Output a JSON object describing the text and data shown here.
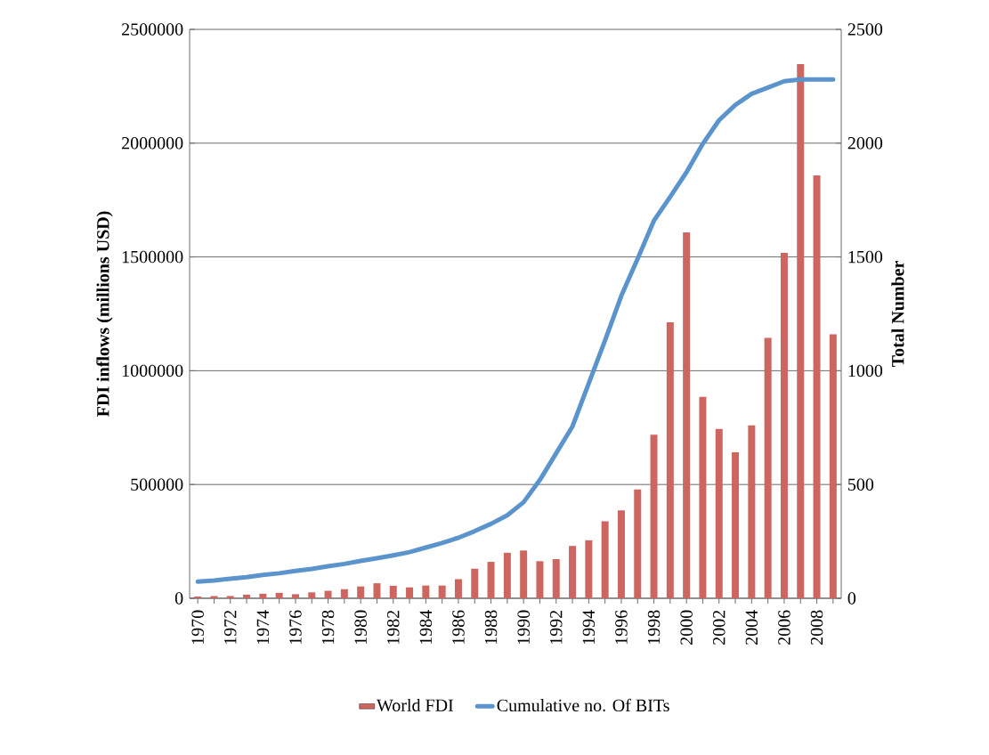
{
  "chart_data": {
    "type": "bar",
    "categories": [
      "1970",
      null,
      "1972",
      null,
      "1974",
      null,
      "1976",
      null,
      "1978",
      null,
      "1980",
      null,
      "1982",
      null,
      "1984",
      null,
      "1986",
      null,
      "1988",
      null,
      "1990",
      null,
      "1992",
      null,
      "1994",
      null,
      "1996",
      null,
      "1998",
      null,
      "2000",
      null,
      "2002",
      null,
      "2004",
      null,
      "2006",
      null,
      "2008",
      null
    ],
    "series": [
      {
        "name": "World FDI",
        "color": "#cd6560",
        "values": [
          8000,
          10000,
          10000,
          16000,
          20000,
          24000,
          18000,
          26000,
          33000,
          40000,
          52000,
          66000,
          55000,
          48000,
          56000,
          56000,
          84000,
          130000,
          160000,
          200000,
          210000,
          163000,
          172000,
          230000,
          255000,
          338000,
          386000,
          478000,
          719000,
          1213000,
          1608000,
          885000,
          744000,
          642000,
          760000,
          1144000,
          1518000,
          2347000,
          1858000,
          1160000
        ]
      },
      {
        "name": "Cumulative no. Of BITs",
        "type": "line",
        "axis": "y2",
        "color": "#5b93cd",
        "values": [
          73,
          78,
          86,
          93,
          103,
          110,
          120,
          129,
          141,
          151,
          164,
          176,
          189,
          203,
          223,
          243,
          266,
          295,
          327,
          365,
          422,
          520,
          637,
          755,
          944,
          1133,
          1329,
          1492,
          1659,
          1764,
          1872,
          1997,
          2101,
          2168,
          2217,
          2244,
          2272,
          2280,
          2280,
          2280
        ]
      }
    ],
    "ylabel": "FDI inflows (millions USD)",
    "y2label": "Total Number",
    "ylim": [
      0,
      2500000
    ],
    "yticks": [
      0,
      500000,
      1000000,
      1500000,
      2000000,
      2500000
    ],
    "y2lim": [
      0,
      2500
    ],
    "y2ticks": [
      0,
      500,
      1000,
      1500,
      2000,
      2500
    ],
    "grid": "y",
    "legend": "bottom"
  }
}
